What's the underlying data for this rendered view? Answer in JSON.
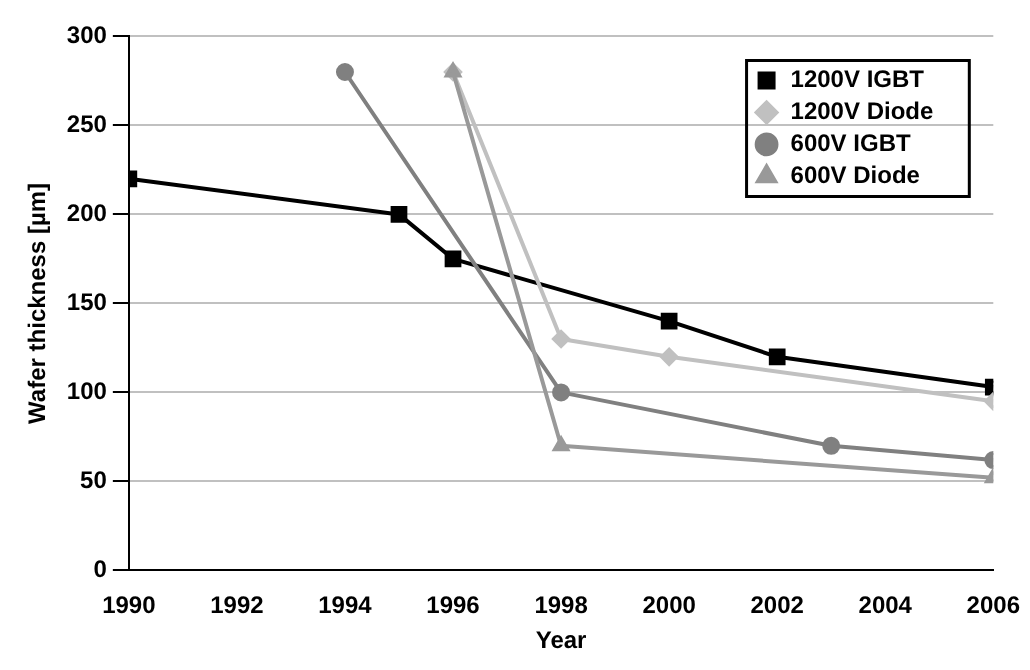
{
  "chart_data": {
    "type": "line",
    "xlabel": "Year",
    "ylabel": "Wafer thickness [µm]",
    "xlim": [
      1990,
      2006
    ],
    "xticks": [
      1990,
      1992,
      1994,
      1996,
      1998,
      2000,
      2002,
      2004,
      2006
    ],
    "ylim": [
      0,
      300
    ],
    "yticks": [
      0,
      50,
      100,
      150,
      200,
      250,
      300
    ],
    "grid": "y",
    "legend": "top right",
    "series": [
      {
        "name": "1200V IGBT",
        "color": "#000000",
        "marker": "square",
        "x": [
          1990,
          1995,
          1996,
          2000,
          2002,
          2006
        ],
        "values": [
          220,
          200,
          175,
          140,
          120,
          103
        ]
      },
      {
        "name": "1200V Diode",
        "color": "#c0c0c0",
        "marker": "diamond",
        "x": [
          1996,
          1998,
          2000,
          2006
        ],
        "values": [
          280,
          130,
          120,
          95
        ]
      },
      {
        "name": "600V IGBT",
        "color": "#808080",
        "marker": "circle",
        "x": [
          1994,
          1998,
          2003,
          2006
        ],
        "values": [
          280,
          100,
          70,
          62
        ]
      },
      {
        "name": "600V Diode",
        "color": "#999999",
        "marker": "triangle",
        "x": [
          1996,
          1998,
          2006
        ],
        "values": [
          280,
          70,
          52
        ]
      }
    ]
  }
}
